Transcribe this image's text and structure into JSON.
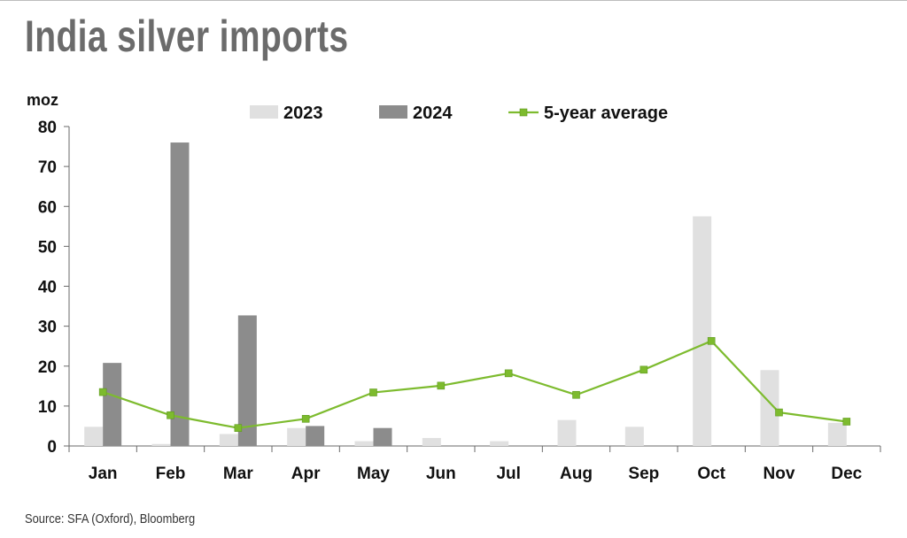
{
  "title": "India silver imports",
  "source": "Source: SFA (Oxford), Bloomberg",
  "chart_data": {
    "type": "bar",
    "ylabel": "moz",
    "ylim": [
      0,
      80
    ],
    "yticks": [
      0,
      10,
      20,
      30,
      40,
      50,
      60,
      70,
      80
    ],
    "categories": [
      "Jan",
      "Feb",
      "Mar",
      "Apr",
      "May",
      "Jun",
      "Jul",
      "Aug",
      "Sep",
      "Oct",
      "Nov",
      "Dec"
    ],
    "series": [
      {
        "name": "2023",
        "type": "bar",
        "color": "#e0e0e0",
        "values": [
          4.8,
          0.5,
          3.0,
          4.5,
          1.2,
          2.0,
          1.2,
          6.5,
          4.8,
          57.5,
          19.0,
          5.8
        ]
      },
      {
        "name": "2024",
        "type": "bar",
        "color": "#8c8c8c",
        "values": [
          20.8,
          76.0,
          32.7,
          5.0,
          4.5,
          null,
          null,
          null,
          null,
          null,
          null,
          null
        ]
      },
      {
        "name": "5-year average",
        "type": "line",
        "color": "#7dbb2e",
        "values": [
          13.5,
          7.7,
          4.5,
          6.8,
          13.4,
          15.1,
          18.2,
          12.8,
          19.1,
          26.3,
          8.4,
          6.1
        ]
      }
    ],
    "legend_position": "top",
    "grid": false
  }
}
